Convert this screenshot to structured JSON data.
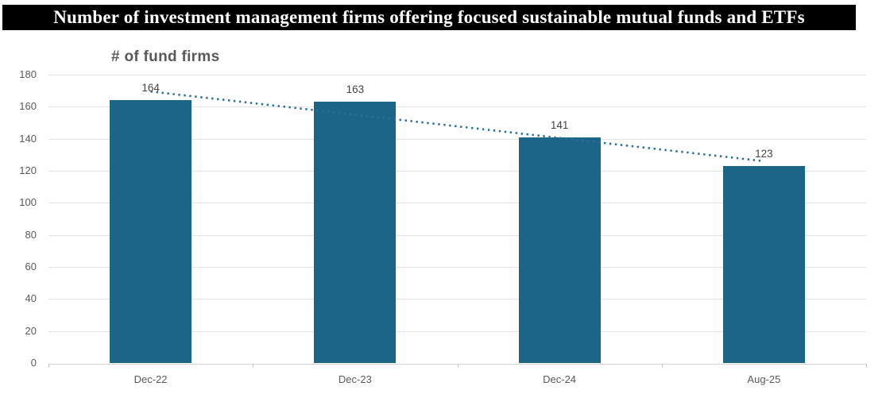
{
  "banner": {
    "title": "Number of investment management firms offering focused sustainable mutual funds and ETFs",
    "bg_color": "#000000",
    "text_color": "#ffffff"
  },
  "chart_data": {
    "type": "bar",
    "title": "# of fund firms",
    "categories": [
      "Dec-22",
      "Dec-23",
      "Dec-24",
      "Aug-25"
    ],
    "values": [
      164,
      163,
      141,
      123
    ],
    "data_labels": [
      "164",
      "163",
      "141",
      "123"
    ],
    "ylim": [
      0,
      180
    ],
    "ytick_labels": [
      "0",
      "20",
      "40",
      "60",
      "80",
      "100",
      "120",
      "140",
      "160",
      "180"
    ],
    "grid": true,
    "legend": "none",
    "bar_color": "#1d6489",
    "trendline": {
      "type": "linear",
      "style": "dotted",
      "color": "#2a6f9e"
    },
    "axis_label_color": "#595959",
    "data_label_color": "#444444"
  }
}
